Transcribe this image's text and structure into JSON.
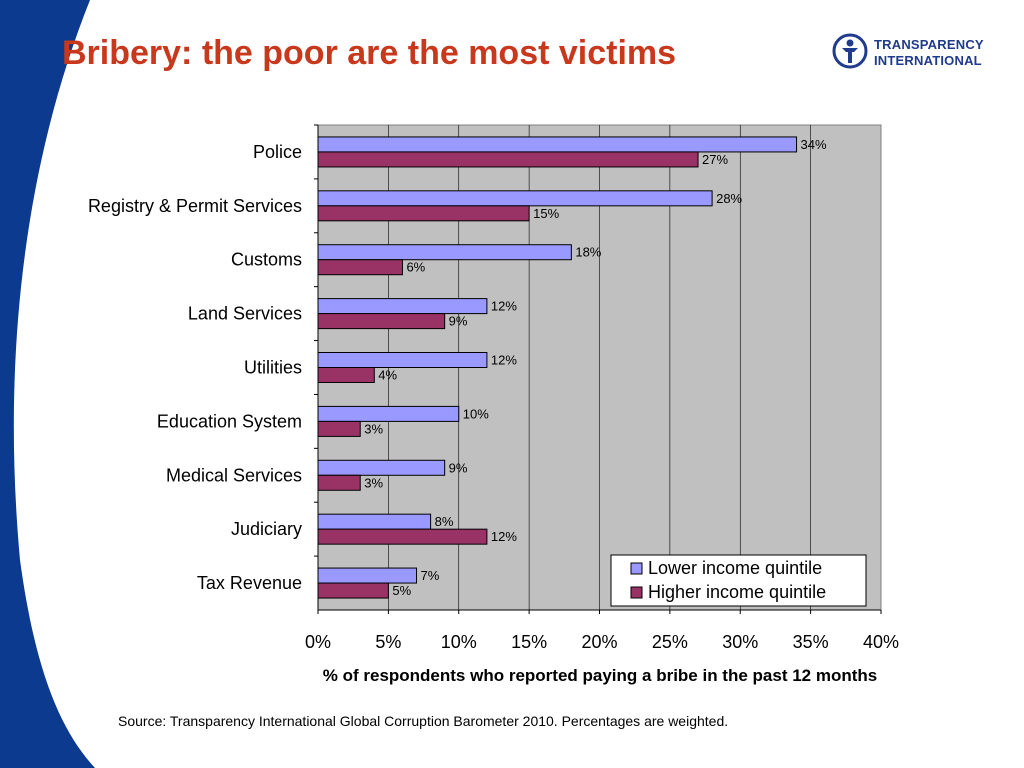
{
  "slide": {
    "title": "Bribery: the poor are the most victims",
    "source": "Source: Transparency International Global Corruption Barometer 2010. Percentages are weighted.",
    "logo": {
      "line1": "TRANSPARENCY",
      "line2": "INTERNATIONAL",
      "icon": "transparency-international-logo-icon"
    }
  },
  "colors": {
    "title": "#c8381c",
    "side_band": "#0b3a8e",
    "plot_bg": "#c0c0c0",
    "lower_income": "#9999ff",
    "higher_income": "#993366",
    "logo": "#203a8c"
  },
  "chart_data": {
    "type": "bar",
    "orientation": "horizontal",
    "categories": [
      "Police",
      "Registry & Permit Services",
      "Customs",
      "Land Services",
      "Utilities",
      "Education System",
      "Medical Services",
      "Judiciary",
      "Tax Revenue"
    ],
    "series": [
      {
        "name": "Lower income quintile",
        "values": [
          34,
          28,
          18,
          12,
          12,
          10,
          9,
          8,
          7
        ],
        "labels": [
          "34%",
          "28%",
          "18%",
          "12%",
          "12%",
          "10%",
          "9%",
          "8%",
          "7%"
        ]
      },
      {
        "name": "Higher income quintile",
        "values": [
          27,
          15,
          6,
          9,
          4,
          3,
          3,
          12,
          5
        ],
        "labels": [
          "27%",
          "15%",
          "6%",
          "9%",
          "4%",
          "3%",
          "3%",
          "12%",
          "5%"
        ]
      }
    ],
    "xlabel": "% of respondents who reported paying a bribe in the past 12 months",
    "xlim": [
      0,
      40
    ],
    "xticks": [
      0,
      5,
      10,
      15,
      20,
      25,
      30,
      35,
      40
    ],
    "xtick_labels": [
      "0%",
      "5%",
      "10%",
      "15%",
      "20%",
      "25%",
      "30%",
      "35%",
      "40%"
    ],
    "grid": true,
    "legend": "bottom-right"
  }
}
